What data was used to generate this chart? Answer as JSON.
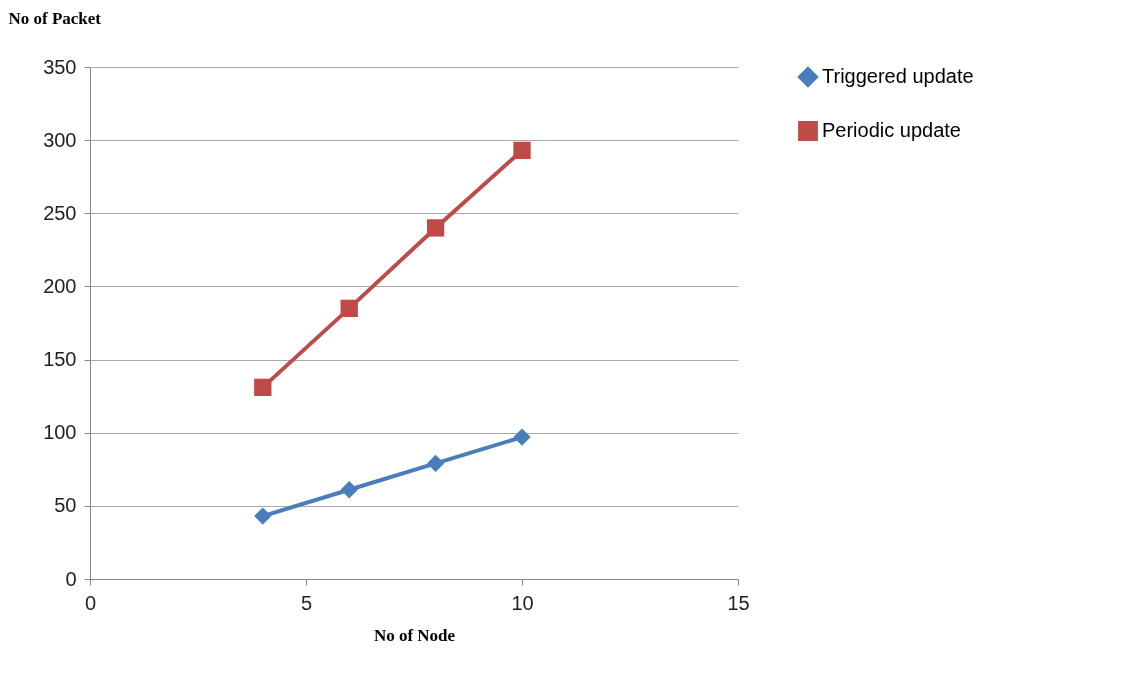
{
  "chart_data": {
    "type": "line",
    "xlabel": "No of Node",
    "ylabel": "No of Packet",
    "x": [
      4,
      6,
      8,
      10
    ],
    "series": [
      {
        "name": "Triggered update",
        "color": "#4a7ebb",
        "marker": "diamond",
        "values": [
          43,
          61,
          79,
          97
        ]
      },
      {
        "name": "Periodic update",
        "color": "#be4b48",
        "marker": "square",
        "values": [
          131,
          185,
          240,
          293
        ]
      }
    ],
    "xlim": [
      0,
      15
    ],
    "xticks": [
      0,
      5,
      10,
      15
    ],
    "ylim": [
      0,
      350
    ],
    "yticks": [
      0,
      50,
      100,
      150,
      200,
      250,
      300,
      350
    ],
    "grid": "y",
    "legend": "right",
    "line_style": "solid"
  }
}
